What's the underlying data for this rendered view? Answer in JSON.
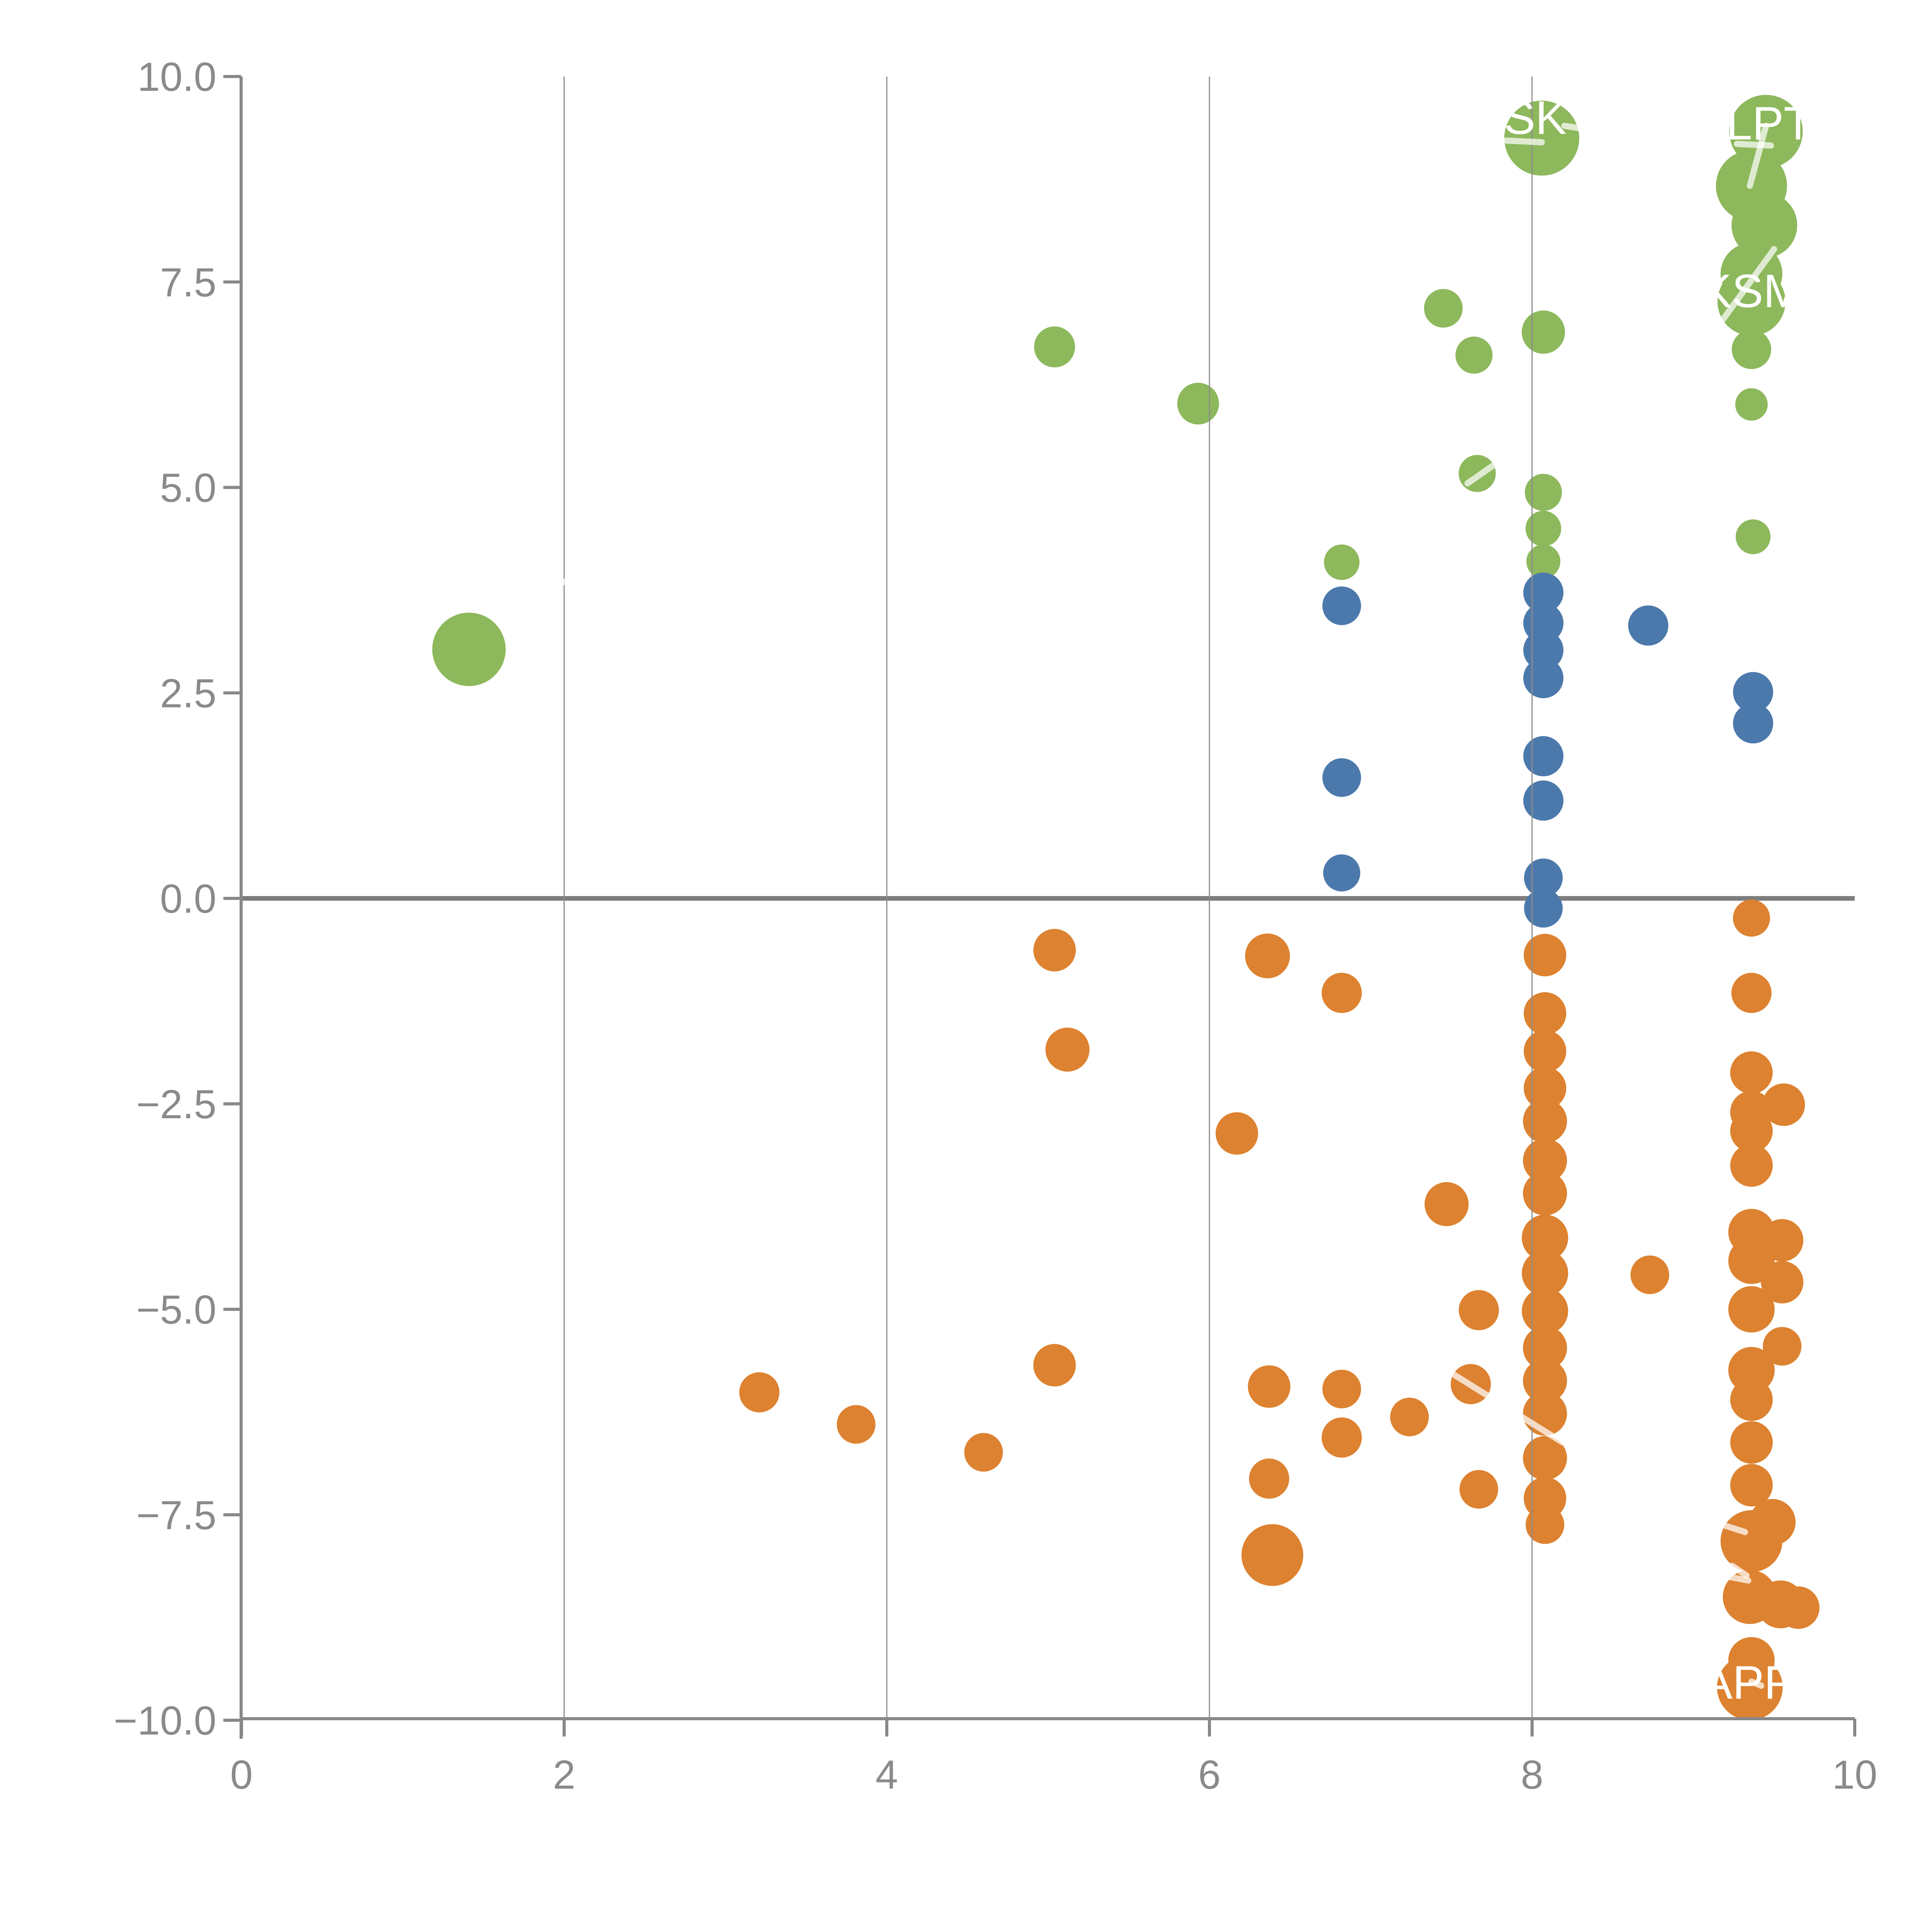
{
  "chart_data": {
    "type": "scatter",
    "title": "",
    "xlabel": "",
    "ylabel": "",
    "xlim": [
      0,
      10
    ],
    "ylim": [
      -10,
      10
    ],
    "grid": "vertical-only",
    "grid_x": [
      2,
      4,
      6,
      8
    ],
    "zero_rule_y": 0,
    "x_ticks": [
      0,
      2,
      4,
      6,
      8,
      10
    ],
    "x_tick_labels": [
      "0",
      "2",
      "4",
      "6",
      "8",
      "10"
    ],
    "y_ticks": [
      10.0,
      7.5,
      5.0,
      2.5,
      0.0,
      -2.5,
      -5.0,
      -7.5,
      -10.0
    ],
    "y_tick_labels": [
      "10.0",
      "7.5",
      "5.0",
      "2.5",
      "0.0",
      "−2.5",
      "−5.0",
      "−7.5",
      "−10.0"
    ],
    "legend": "none",
    "series": [
      {
        "name": "green",
        "color": "#8DB85C",
        "points": [
          {
            "x": 1.41,
            "y": 3.03,
            "r": 95
          },
          {
            "x": 5.04,
            "y": 6.71,
            "r": 53
          },
          {
            "x": 5.93,
            "y": 6.02,
            "r": 54
          },
          {
            "x": 7.45,
            "y": 7.18,
            "r": 50
          },
          {
            "x": 7.64,
            "y": 6.61,
            "r": 48
          },
          {
            "x": 8.07,
            "y": 6.89,
            "r": 56
          },
          {
            "x": 7.66,
            "y": 5.17,
            "r": 48
          },
          {
            "x": 8.07,
            "y": 4.94,
            "r": 48
          },
          {
            "x": 8.07,
            "y": 4.5,
            "r": 46
          },
          {
            "x": 8.07,
            "y": 4.1,
            "r": 44
          },
          {
            "x": 6.82,
            "y": 4.09,
            "r": 46
          },
          {
            "x": 9.37,
            "y": 4.4,
            "r": 45
          },
          {
            "x": 9.36,
            "y": 6.01,
            "r": 42
          },
          {
            "x": 9.36,
            "y": 6.68,
            "r": 51
          },
          {
            "x": 9.36,
            "y": 7.26,
            "r": 88
          },
          {
            "x": 9.36,
            "y": 7.6,
            "r": 80
          },
          {
            "x": 8.06,
            "y": 9.25,
            "r": 97
          },
          {
            "x": 9.45,
            "y": 9.33,
            "r": 95
          },
          {
            "x": 9.36,
            "y": 8.67,
            "r": 92
          },
          {
            "x": 9.44,
            "y": 8.19,
            "r": 85
          }
        ]
      },
      {
        "name": "blue",
        "color": "#4C79AC",
        "points": [
          {
            "x": 6.82,
            "y": 3.56,
            "r": 50
          },
          {
            "x": 6.82,
            "y": 1.47,
            "r": 50
          },
          {
            "x": 6.82,
            "y": 0.31,
            "r": 48
          },
          {
            "x": 8.07,
            "y": 3.72,
            "r": 52
          },
          {
            "x": 8.07,
            "y": 3.35,
            "r": 52
          },
          {
            "x": 8.07,
            "y": 3.02,
            "r": 52
          },
          {
            "x": 8.07,
            "y": 2.68,
            "r": 52
          },
          {
            "x": 8.07,
            "y": 1.73,
            "r": 52
          },
          {
            "x": 8.07,
            "y": 1.19,
            "r": 52
          },
          {
            "x": 8.07,
            "y": 0.25,
            "r": 50
          },
          {
            "x": 8.07,
            "y": -0.12,
            "r": 50
          },
          {
            "x": 8.72,
            "y": 3.32,
            "r": 52
          },
          {
            "x": 9.37,
            "y": 2.51,
            "r": 52
          },
          {
            "x": 9.37,
            "y": 2.13,
            "r": 52
          }
        ]
      },
      {
        "name": "orange",
        "color": "#DD8230",
        "points": [
          {
            "x": 5.04,
            "y": -0.63,
            "r": 55
          },
          {
            "x": 5.12,
            "y": -1.84,
            "r": 57
          },
          {
            "x": 6.36,
            "y": -0.7,
            "r": 58
          },
          {
            "x": 6.82,
            "y": -1.15,
            "r": 52
          },
          {
            "x": 6.17,
            "y": -2.86,
            "r": 55
          },
          {
            "x": 7.47,
            "y": -3.72,
            "r": 57
          },
          {
            "x": 8.73,
            "y": -4.58,
            "r": 50
          },
          {
            "x": 7.67,
            "y": -5.01,
            "r": 52
          },
          {
            "x": 5.04,
            "y": -5.68,
            "r": 55
          },
          {
            "x": 3.21,
            "y": -6.01,
            "r": 52
          },
          {
            "x": 3.81,
            "y": -6.4,
            "r": 50
          },
          {
            "x": 4.6,
            "y": -6.74,
            "r": 50
          },
          {
            "x": 6.37,
            "y": -5.94,
            "r": 55
          },
          {
            "x": 6.82,
            "y": -5.97,
            "r": 50
          },
          {
            "x": 6.82,
            "y": -6.56,
            "r": 52
          },
          {
            "x": 7.24,
            "y": -6.31,
            "r": 50
          },
          {
            "x": 7.62,
            "y": -5.91,
            "r": 52
          },
          {
            "x": 7.67,
            "y": -7.19,
            "r": 50
          },
          {
            "x": 6.37,
            "y": -7.06,
            "r": 52
          },
          {
            "x": 6.39,
            "y": -7.99,
            "r": 80
          },
          {
            "x": 8.08,
            "y": -0.69,
            "r": 55
          },
          {
            "x": 8.08,
            "y": -1.4,
            "r": 55
          },
          {
            "x": 8.08,
            "y": -1.86,
            "r": 55
          },
          {
            "x": 8.08,
            "y": -2.31,
            "r": 55
          },
          {
            "x": 8.08,
            "y": -2.71,
            "r": 57
          },
          {
            "x": 8.08,
            "y": -3.19,
            "r": 57
          },
          {
            "x": 8.08,
            "y": -3.59,
            "r": 57
          },
          {
            "x": 8.08,
            "y": -4.13,
            "r": 60
          },
          {
            "x": 8.08,
            "y": -4.56,
            "r": 60
          },
          {
            "x": 8.08,
            "y": -5.02,
            "r": 60
          },
          {
            "x": 8.08,
            "y": -5.47,
            "r": 57
          },
          {
            "x": 8.08,
            "y": -5.87,
            "r": 57
          },
          {
            "x": 8.08,
            "y": -6.27,
            "r": 57
          },
          {
            "x": 8.08,
            "y": -6.81,
            "r": 57
          },
          {
            "x": 8.08,
            "y": -7.3,
            "r": 55
          },
          {
            "x": 8.08,
            "y": -7.62,
            "r": 50
          },
          {
            "x": 9.36,
            "y": -0.24,
            "r": 48
          },
          {
            "x": 9.36,
            "y": -1.15,
            "r": 52
          },
          {
            "x": 9.36,
            "y": -2.12,
            "r": 55
          },
          {
            "x": 9.36,
            "y": -2.6,
            "r": 55
          },
          {
            "x": 9.36,
            "y": -2.83,
            "r": 55
          },
          {
            "x": 9.56,
            "y": -2.51,
            "r": 55
          },
          {
            "x": 9.36,
            "y": -3.25,
            "r": 55
          },
          {
            "x": 9.36,
            "y": -4.06,
            "r": 60
          },
          {
            "x": 9.55,
            "y": -4.16,
            "r": 55
          },
          {
            "x": 9.36,
            "y": -4.41,
            "r": 60
          },
          {
            "x": 9.55,
            "y": -4.67,
            "r": 55
          },
          {
            "x": 9.36,
            "y": -5.0,
            "r": 60
          },
          {
            "x": 9.55,
            "y": -5.45,
            "r": 50
          },
          {
            "x": 9.36,
            "y": -5.74,
            "r": 60
          },
          {
            "x": 9.36,
            "y": -6.1,
            "r": 55
          },
          {
            "x": 9.36,
            "y": -6.62,
            "r": 55
          },
          {
            "x": 9.36,
            "y": -7.14,
            "r": 55
          },
          {
            "x": 9.49,
            "y": -7.59,
            "r": 60
          },
          {
            "x": 9.36,
            "y": -7.82,
            "r": 80
          },
          {
            "x": 9.35,
            "y": -8.5,
            "r": 70
          },
          {
            "x": 9.54,
            "y": -8.59,
            "r": 62
          },
          {
            "x": 9.65,
            "y": -8.63,
            "r": 55
          },
          {
            "x": 9.36,
            "y": -9.27,
            "r": 60
          },
          {
            "x": 9.35,
            "y": -9.6,
            "r": 85
          }
        ]
      }
    ],
    "annotations": [
      {
        "text": "SK",
        "x": 8.02,
        "y": 9.5
      },
      {
        "text": "LPT",
        "x": 9.47,
        "y": 9.43
      },
      {
        "text": "KSM",
        "x": 9.36,
        "y": 7.39
      },
      {
        "text": "APP",
        "x": 9.34,
        "y": -9.54
      }
    ],
    "leader_lines": [
      {
        "x1": 7.84,
        "y1": 9.22,
        "x2": 8.06,
        "y2": 9.2
      },
      {
        "x1": 8.2,
        "y1": 9.4,
        "x2": 8.3,
        "y2": 9.37
      },
      {
        "x1": 9.27,
        "y1": 9.18,
        "x2": 9.48,
        "y2": 9.16
      },
      {
        "x1": 9.45,
        "y1": 9.4,
        "x2": 9.35,
        "y2": 8.67
      },
      {
        "x1": 9.5,
        "y1": 7.9,
        "x2": 9.16,
        "y2": 6.98
      },
      {
        "x1": 7.6,
        "y1": 5.05,
        "x2": 7.79,
        "y2": 5.31
      },
      {
        "x1": 1.97,
        "y1": 3.87,
        "x2": 2.08,
        "y2": 3.8
      },
      {
        "x1": 7.43,
        "y1": -5.69,
        "x2": 8.19,
        "y2": -6.62
      },
      {
        "x1": 9.13,
        "y1": -7.59,
        "x2": 9.32,
        "y2": -7.71
      },
      {
        "x1": 9.18,
        "y1": -8.24,
        "x2": 9.34,
        "y2": -8.3
      },
      {
        "x1": 9.24,
        "y1": -8.12,
        "x2": 9.33,
        "y2": -8.24
      },
      {
        "x1": 9.27,
        "y1": -8.88,
        "x2": 9.46,
        "y2": -8.91
      },
      {
        "x1": 9.36,
        "y1": -9.53,
        "x2": 9.42,
        "y2": -9.58
      }
    ],
    "style": {
      "background": "#ffffff",
      "axis_color": "#888888",
      "tick_label_color": "#8a8a8a",
      "gridline_color": "#8c8c8c",
      "zero_rule_color": "#7d7d7d",
      "annotation_text_color": "#ffffff",
      "leader_line_color": "rgba(255,255,255,0.72)"
    }
  }
}
